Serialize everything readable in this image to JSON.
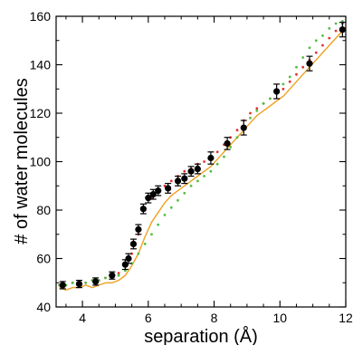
{
  "chart_data": {
    "type": "scatter",
    "xlabel": "separation (Å)",
    "ylabel": "# of water molecules",
    "xlim": [
      3.2,
      12.0
    ],
    "ylim": [
      40,
      160
    ],
    "xticks": [
      4,
      6,
      8,
      10,
      12
    ],
    "yticks": [
      40,
      60,
      80,
      100,
      120,
      140,
      160
    ],
    "grid": false,
    "legend": "none",
    "colors": {
      "orange_line": "#f0a020",
      "red_markers": "#e83030",
      "green_markers": "#50c040",
      "black_points": "#000000"
    },
    "series": [
      {
        "kind": "line",
        "color": "#f0a020",
        "x": [
          3.3,
          3.5,
          3.7,
          3.9,
          4.1,
          4.3,
          4.5,
          4.7,
          4.9,
          5.1,
          5.3,
          5.5,
          5.7,
          5.9,
          6.1,
          6.3,
          6.5,
          6.7,
          6.9,
          7.1,
          7.3,
          7.5,
          7.7,
          7.9,
          8.1,
          8.3,
          8.5,
          8.7,
          8.9,
          9.1,
          9.3,
          9.5,
          9.7,
          9.9,
          10.1,
          10.3,
          10.5,
          10.7,
          10.9,
          11.1,
          11.3,
          11.5,
          11.7,
          11.9
        ],
        "y": [
          48,
          47,
          48,
          48,
          49,
          48,
          49,
          50,
          50,
          51,
          53,
          57,
          62,
          69,
          75,
          79,
          83,
          86,
          88,
          90,
          92,
          94,
          96,
          98,
          101,
          104,
          107,
          110,
          113,
          116,
          119,
          121,
          123,
          125,
          127,
          130,
          133,
          136,
          139,
          142,
          145,
          148,
          151,
          154
        ]
      },
      {
        "kind": "markers",
        "color": "#e83030",
        "x": [
          3.3,
          3.5,
          3.7,
          3.9,
          4.1,
          4.3,
          4.5,
          4.7,
          4.9,
          5.1,
          5.3,
          5.5,
          5.7,
          5.9,
          6.1,
          6.3,
          6.5,
          6.7,
          6.9,
          7.1,
          7.3,
          7.5,
          7.7,
          7.9,
          8.1,
          8.3,
          8.5,
          8.7,
          8.9,
          9.1,
          9.3,
          9.5,
          9.7,
          9.9,
          10.1,
          10.3,
          10.5,
          10.7,
          10.9,
          11.1,
          11.3,
          11.5,
          11.7,
          11.9
        ],
        "y": [
          49,
          49,
          50,
          50,
          50,
          51,
          51,
          52,
          53,
          54,
          57,
          62,
          70,
          80,
          85,
          88,
          90,
          92,
          94,
          96,
          97,
          99,
          100,
          102,
          104,
          107,
          110,
          113,
          117,
          120,
          122,
          124,
          126,
          128,
          130,
          133,
          136,
          139,
          142,
          145,
          148,
          151,
          154,
          157
        ]
      },
      {
        "kind": "markers",
        "color": "#50c040",
        "x": [
          3.3,
          3.5,
          3.7,
          3.9,
          4.1,
          4.3,
          4.5,
          4.7,
          4.9,
          5.1,
          5.3,
          5.5,
          5.7,
          5.9,
          6.1,
          6.3,
          6.5,
          6.7,
          6.9,
          7.1,
          7.3,
          7.5,
          7.7,
          7.9,
          8.1,
          8.3,
          8.5,
          8.7,
          8.9,
          9.1,
          9.3,
          9.5,
          9.7,
          9.9,
          10.1,
          10.3,
          10.5,
          10.7,
          10.9,
          11.1,
          11.3,
          11.5,
          11.7,
          11.9
        ],
        "y": [
          49,
          49,
          50,
          50,
          50,
          51,
          51,
          52,
          52,
          53,
          55,
          58,
          62,
          66,
          70,
          74,
          78,
          81,
          84,
          87,
          90,
          92,
          94,
          96,
          99,
          102,
          106,
          110,
          114,
          118,
          121,
          124,
          126,
          129,
          132,
          135,
          139,
          143,
          147,
          150,
          152,
          155,
          157,
          158
        ]
      },
      {
        "kind": "errorbar-points",
        "color": "#000000",
        "points": [
          {
            "x": 3.4,
            "y": 49.0,
            "err": 1.5
          },
          {
            "x": 3.9,
            "y": 49.5,
            "err": 1.5
          },
          {
            "x": 4.4,
            "y": 50.5,
            "err": 1.5
          },
          {
            "x": 4.9,
            "y": 53.0,
            "err": 1.5
          },
          {
            "x": 5.3,
            "y": 57.5,
            "err": 2.0
          },
          {
            "x": 5.4,
            "y": 60.0,
            "err": 2.0
          },
          {
            "x": 5.55,
            "y": 66.0,
            "err": 2.0
          },
          {
            "x": 5.7,
            "y": 72.0,
            "err": 2.0
          },
          {
            "x": 5.85,
            "y": 80.5,
            "err": 2.0
          },
          {
            "x": 6.0,
            "y": 85.0,
            "err": 2.0
          },
          {
            "x": 6.15,
            "y": 86.5,
            "err": 2.0
          },
          {
            "x": 6.3,
            "y": 88.0,
            "err": 2.0
          },
          {
            "x": 6.6,
            "y": 89.0,
            "err": 2.0
          },
          {
            "x": 6.9,
            "y": 92.0,
            "err": 2.0
          },
          {
            "x": 7.1,
            "y": 93.0,
            "err": 2.0
          },
          {
            "x": 7.3,
            "y": 96.0,
            "err": 2.0
          },
          {
            "x": 7.5,
            "y": 97.0,
            "err": 2.0
          },
          {
            "x": 7.9,
            "y": 101.5,
            "err": 2.5
          },
          {
            "x": 8.4,
            "y": 107.5,
            "err": 2.5
          },
          {
            "x": 8.9,
            "y": 114.0,
            "err": 3.0
          },
          {
            "x": 9.9,
            "y": 129.0,
            "err": 3.0
          },
          {
            "x": 10.9,
            "y": 140.5,
            "err": 3.0
          },
          {
            "x": 11.9,
            "y": 154.5,
            "err": 3.0
          }
        ]
      }
    ]
  }
}
